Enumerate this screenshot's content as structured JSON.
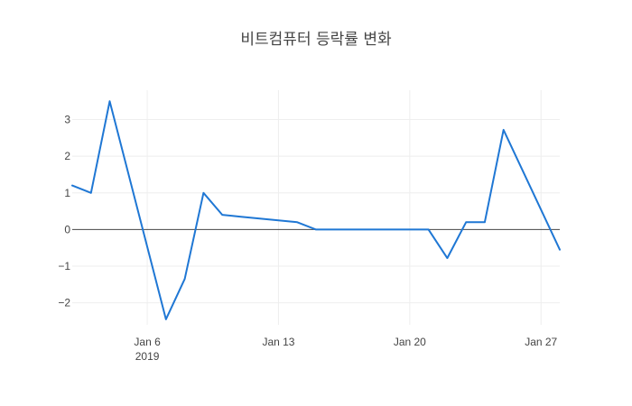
{
  "chart_data": {
    "type": "line",
    "title": "비트컴퓨터 등락률 변화",
    "xlabel": "",
    "ylabel": "",
    "x_range": [
      "2019-01-02",
      "2019-01-28"
    ],
    "ylim": [
      -2.6,
      3.8
    ],
    "grid": true,
    "zero_line": true,
    "line_color": "#1f77d4",
    "grid_color": "#eeeeee",
    "zero_line_color": "#444444",
    "x_ticks": [
      {
        "date": "2019-01-06",
        "label": "Jan 6",
        "sublabel": "2019"
      },
      {
        "date": "2019-01-13",
        "label": "Jan 13",
        "sublabel": ""
      },
      {
        "date": "2019-01-20",
        "label": "Jan 20",
        "sublabel": ""
      },
      {
        "date": "2019-01-27",
        "label": "Jan 27",
        "sublabel": ""
      }
    ],
    "y_ticks": [
      {
        "value": 3,
        "label": "3"
      },
      {
        "value": 2,
        "label": "2"
      },
      {
        "value": 1,
        "label": "1"
      },
      {
        "value": 0,
        "label": "0"
      },
      {
        "value": -1,
        "label": "−1"
      },
      {
        "value": -2,
        "label": "−2"
      }
    ],
    "x": [
      "2019-01-02",
      "2019-01-03",
      "2019-01-04",
      "2019-01-07",
      "2019-01-08",
      "2019-01-09",
      "2019-01-10",
      "2019-01-11",
      "2019-01-14",
      "2019-01-15",
      "2019-01-16",
      "2019-01-17",
      "2019-01-18",
      "2019-01-21",
      "2019-01-22",
      "2019-01-23",
      "2019-01-24",
      "2019-01-25",
      "2019-01-28"
    ],
    "values": [
      1.2,
      1.0,
      3.5,
      -2.45,
      -1.35,
      1.0,
      0.4,
      0.35,
      0.2,
      0.0,
      0.0,
      0.0,
      0.0,
      0.0,
      -0.78,
      0.2,
      0.2,
      2.72,
      -0.55
    ]
  }
}
